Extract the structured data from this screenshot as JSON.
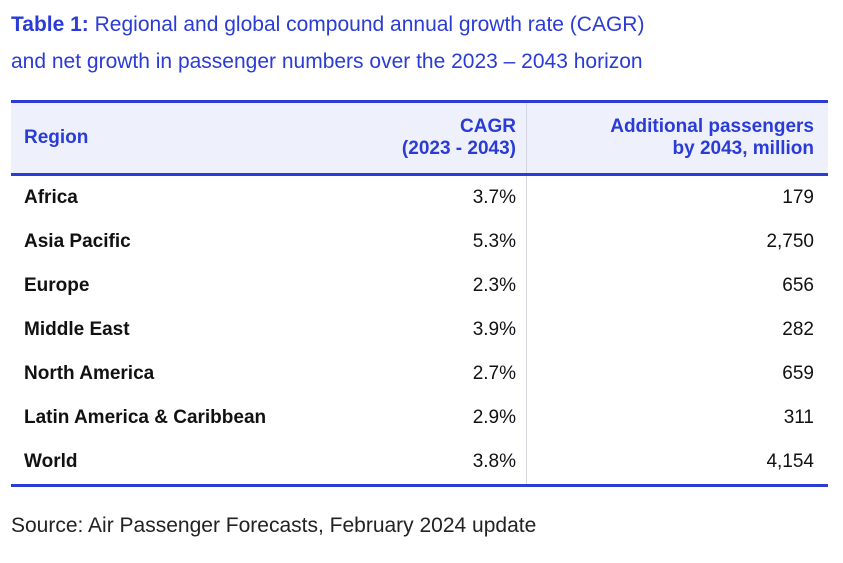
{
  "caption": {
    "label": "Table 1:",
    "text_line1": "Regional and global compound annual growth rate (CAGR)",
    "text_line2": "and net growth in passenger numbers over the 2023 – 2043 horizon"
  },
  "table": {
    "headers": {
      "region": "Region",
      "cagr_line1": "CAGR",
      "cagr_line2": "(2023 - 2043)",
      "add_line1": "Additional passengers",
      "add_line2": "by 2043, million"
    },
    "rows": [
      {
        "region": "Africa",
        "cagr": "3.7%",
        "additional": "179"
      },
      {
        "region": "Asia Pacific",
        "cagr": "5.3%",
        "additional": "2,750"
      },
      {
        "region": "Europe",
        "cagr": "2.3%",
        "additional": "656"
      },
      {
        "region": "Middle East",
        "cagr": "3.9%",
        "additional": "282"
      },
      {
        "region": "North America",
        "cagr": "2.7%",
        "additional": "659"
      },
      {
        "region": "Latin America & Caribbean",
        "cagr": "2.9%",
        "additional": "311"
      },
      {
        "region": "World",
        "cagr": "3.8%",
        "additional": "4,154"
      }
    ]
  },
  "source": "Source: Air Passenger Forecasts, February 2024 update",
  "colors": {
    "accent": "#2a3bd6",
    "header_bg": "#eef0fb"
  }
}
